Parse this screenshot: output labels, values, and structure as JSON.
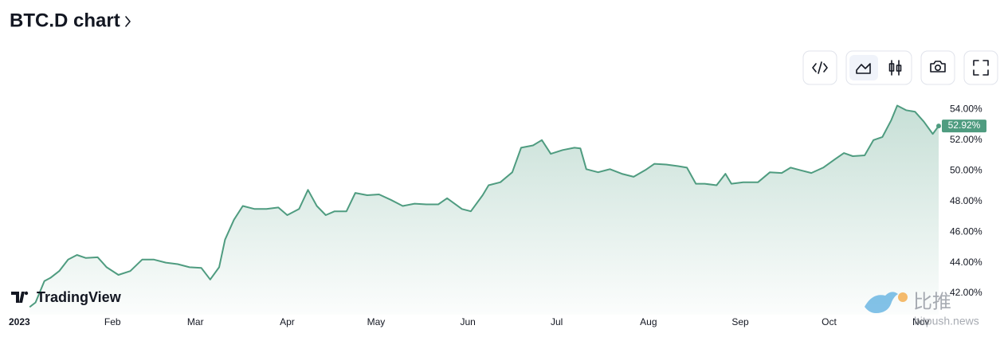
{
  "chart_data": {
    "type": "area",
    "title": "BTC.D chart",
    "logo": "TradingView",
    "watermark": {
      "cn": "比推",
      "site": "bitpush.news"
    },
    "x": [
      3,
      5,
      8,
      10,
      13,
      16,
      19,
      22,
      26,
      29,
      33,
      37,
      41,
      45,
      49,
      53,
      57,
      61,
      64,
      67,
      69,
      72,
      75,
      79,
      83,
      87,
      90,
      94,
      97,
      100,
      103,
      106,
      110,
      113,
      117,
      121,
      125,
      129,
      133,
      137,
      141,
      144,
      149,
      152,
      156,
      158,
      162,
      166,
      169,
      173,
      176,
      179,
      183,
      187,
      189,
      191,
      195,
      199,
      203,
      207,
      211,
      214,
      218,
      222,
      225,
      228,
      231,
      235,
      238,
      240,
      244,
      249,
      253,
      257,
      260,
      263,
      267,
      271,
      275,
      278,
      281,
      285,
      288,
      291,
      294,
      296,
      299,
      302,
      305,
      308,
      310
    ],
    "values": [
      41.1,
      41.4,
      42.8,
      43.0,
      43.45,
      44.2,
      44.5,
      44.3,
      44.35,
      43.7,
      43.2,
      43.45,
      44.2,
      44.2,
      44.0,
      43.9,
      43.7,
      43.65,
      42.9,
      43.7,
      45.5,
      46.8,
      47.7,
      47.5,
      47.5,
      47.6,
      47.1,
      47.5,
      48.75,
      47.7,
      47.1,
      47.35,
      47.35,
      48.55,
      48.4,
      48.45,
      48.1,
      47.7,
      47.85,
      47.8,
      47.8,
      48.2,
      47.5,
      47.35,
      48.4,
      49.05,
      49.25,
      49.9,
      51.5,
      51.65,
      52.0,
      51.1,
      51.35,
      51.5,
      51.45,
      50.1,
      49.9,
      50.1,
      49.8,
      49.6,
      50.05,
      50.45,
      50.4,
      50.3,
      50.2,
      49.15,
      49.15,
      49.05,
      49.8,
      49.15,
      49.25,
      49.25,
      49.9,
      49.85,
      50.2,
      50.05,
      49.85,
      50.2,
      50.75,
      51.15,
      50.95,
      51.0,
      52.0,
      52.2,
      53.3,
      54.25,
      53.95,
      53.85,
      53.2,
      52.4,
      52.92
    ],
    "value_labels": [
      null,
      null,
      null,
      null,
      null,
      null,
      null,
      null,
      null,
      null,
      null,
      null,
      null,
      null,
      null,
      null,
      null,
      null,
      null,
      null,
      null,
      null,
      null,
      null,
      null,
      null,
      null,
      null,
      null,
      null,
      null,
      null,
      null,
      null,
      null,
      null,
      null,
      null,
      null,
      null,
      null,
      null,
      null,
      null,
      null,
      null,
      null,
      null,
      null,
      null,
      null,
      null,
      null,
      null,
      null,
      null,
      null,
      null,
      null,
      null,
      null,
      null,
      null,
      null,
      null,
      null,
      null,
      null,
      null,
      null,
      null,
      null,
      null,
      null,
      null,
      null,
      null,
      null,
      null,
      null,
      null,
      null,
      null,
      null,
      null,
      null,
      null,
      null,
      null,
      null,
      "52.92%"
    ],
    "color": "#4f9c80",
    "xlim": [
      -7,
      310
    ],
    "xticks": [
      {
        "value": 0,
        "label": "2023"
      },
      {
        "value": 31,
        "label": "Feb"
      },
      {
        "value": 59,
        "label": "Mar"
      },
      {
        "value": 90,
        "label": "Apr"
      },
      {
        "value": 120,
        "label": "May"
      },
      {
        "value": 151,
        "label": "Jun"
      },
      {
        "value": 181,
        "label": "Jul"
      },
      {
        "value": 212,
        "label": "Aug"
      },
      {
        "value": 243,
        "label": "Sep"
      },
      {
        "value": 273,
        "label": "Oct"
      },
      {
        "value": 304,
        "label": "Nov"
      }
    ],
    "ylim": [
      40.6,
      54.9
    ],
    "yticks": [
      {
        "value": 42,
        "label": "42.00%"
      },
      {
        "value": 44,
        "label": "44.00%"
      },
      {
        "value": 46,
        "label": "46.00%"
      },
      {
        "value": 48,
        "label": "48.00%"
      },
      {
        "value": 50,
        "label": "50.00%"
      },
      {
        "value": 52,
        "label": "52.00%"
      },
      {
        "value": 54,
        "label": "54.00%"
      }
    ]
  }
}
